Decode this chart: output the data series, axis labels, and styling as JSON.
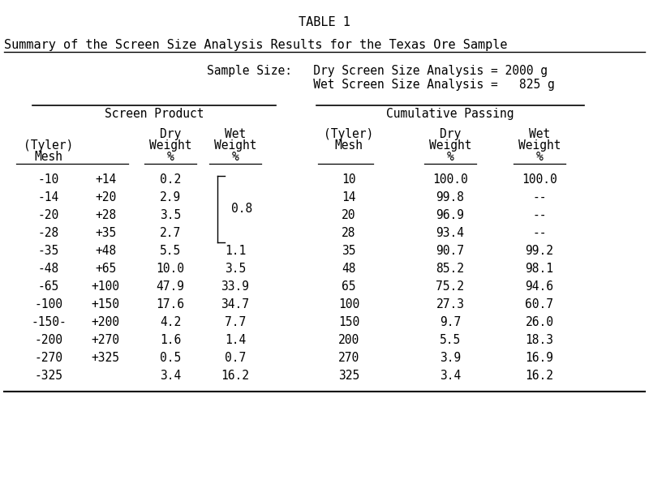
{
  "title": "TABLE 1",
  "subtitle": "Summary of the Screen Size Analysis Results for the Texas Ore Sample",
  "sample_info_line1": "Sample Size:   Dry Screen Size Analysis = 2000 g",
  "sample_info_line2": "                    Wet Screen Size Analysis =   825 g",
  "rows": [
    [
      "-10",
      "+14",
      "0.2",
      "",
      "10",
      "100.0",
      "100.0"
    ],
    [
      "-14",
      "+20",
      "2.9",
      "",
      "14",
      "99.8",
      "--"
    ],
    [
      "-20",
      "+28",
      "3.5",
      "0.8",
      "20",
      "96.9",
      "--"
    ],
    [
      "-28",
      "+35",
      "2.7",
      "",
      "28",
      "93.4",
      "--"
    ],
    [
      "-35",
      "+48",
      "5.5",
      "1.1",
      "35",
      "90.7",
      "99.2"
    ],
    [
      "-48",
      "+65",
      "10.0",
      "3.5",
      "48",
      "85.2",
      "98.1"
    ],
    [
      "-65",
      "+100",
      "47.9",
      "33.9",
      "65",
      "75.2",
      "94.6"
    ],
    [
      "-100",
      "+150",
      "17.6",
      "34.7",
      "100",
      "27.3",
      "60.7"
    ],
    [
      "-150-",
      "+200",
      "4.2",
      "7.7",
      "150",
      "9.7",
      "26.0"
    ],
    [
      "-200",
      "+270",
      "1.6",
      "1.4",
      "200",
      "5.5",
      "18.3"
    ],
    [
      "-270",
      "+325",
      "0.5",
      "0.7",
      "270",
      "3.9",
      "16.9"
    ],
    [
      "-325",
      "",
      "3.4",
      "16.2",
      "325",
      "3.4",
      "16.2"
    ]
  ],
  "wet_weight_bracket_rows": [
    0,
    1,
    2,
    3
  ],
  "wet_weight_bracket_value": "0.8",
  "bg_color": "#ffffff",
  "font_family": "monospace",
  "font_size": 10.5,
  "title_font_size": 11
}
